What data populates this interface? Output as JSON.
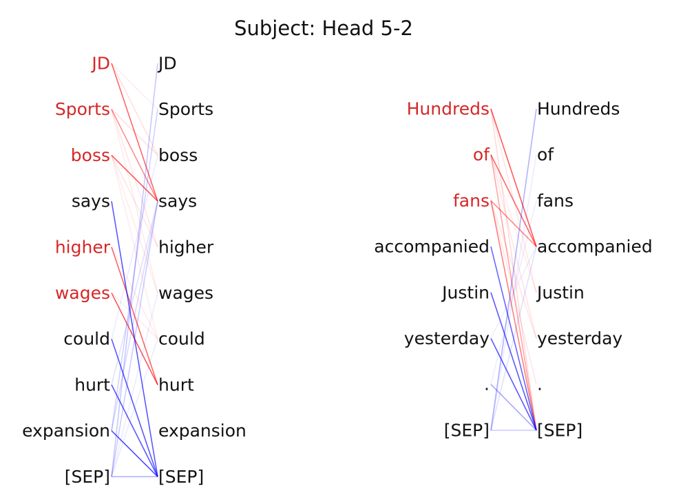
{
  "title": "Subject: Head 5-2",
  "colors": {
    "subject_token": "#d62728",
    "normal_token": "#111111",
    "red_edge": "#ff0000",
    "blue_edge": "#0000ff"
  },
  "panels": [
    {
      "tokens": [
        "JD",
        "Sports",
        "boss",
        "says",
        "higher",
        "wages",
        "could",
        "hurt",
        "expansion",
        "[SEP]"
      ],
      "subject_tokens": [
        0,
        1,
        2,
        4,
        5
      ],
      "edges": [
        {
          "from": 0,
          "to": 3,
          "color": "red",
          "weight": 0.6
        },
        {
          "from": 1,
          "to": 3,
          "color": "red",
          "weight": 0.45
        },
        {
          "from": 2,
          "to": 3,
          "color": "red",
          "weight": 0.65
        },
        {
          "from": 4,
          "to": 7,
          "color": "red",
          "weight": 0.6
        },
        {
          "from": 5,
          "to": 7,
          "color": "red",
          "weight": 0.65
        },
        {
          "from": 0,
          "to": 2,
          "color": "red",
          "weight": 0.12
        },
        {
          "from": 1,
          "to": 2,
          "color": "red",
          "weight": 0.12
        },
        {
          "from": 1,
          "to": 4,
          "color": "red",
          "weight": 0.1
        },
        {
          "from": 1,
          "to": 5,
          "color": "red",
          "weight": 0.08
        },
        {
          "from": 2,
          "to": 4,
          "color": "red",
          "weight": 0.1
        },
        {
          "from": 2,
          "to": 5,
          "color": "red",
          "weight": 0.08
        },
        {
          "from": 2,
          "to": 6,
          "color": "red",
          "weight": 0.08
        },
        {
          "from": 4,
          "to": 6,
          "color": "red",
          "weight": 0.08
        },
        {
          "from": 5,
          "to": 6,
          "color": "red",
          "weight": 0.08
        },
        {
          "from": 0,
          "to": 1,
          "color": "red",
          "weight": 0.07
        },
        {
          "from": 3,
          "to": 9,
          "color": "blue",
          "weight": 0.65
        },
        {
          "from": 6,
          "to": 9,
          "color": "blue",
          "weight": 0.65
        },
        {
          "from": 7,
          "to": 9,
          "color": "blue",
          "weight": 0.65
        },
        {
          "from": 8,
          "to": 9,
          "color": "blue",
          "weight": 0.7
        },
        {
          "from": 9,
          "to": 9,
          "color": "blue",
          "weight": 0.3
        },
        {
          "from": 9,
          "to": 0,
          "color": "blue",
          "weight": 0.22
        },
        {
          "from": 8,
          "to": 1,
          "color": "blue",
          "weight": 0.18
        },
        {
          "from": 9,
          "to": 3,
          "color": "blue",
          "weight": 0.2
        },
        {
          "from": 8,
          "to": 3,
          "color": "blue",
          "weight": 0.15
        },
        {
          "from": 7,
          "to": 3,
          "color": "blue",
          "weight": 0.12
        },
        {
          "from": 6,
          "to": 2,
          "color": "blue",
          "weight": 0.08
        },
        {
          "from": 9,
          "to": 5,
          "color": "blue",
          "weight": 0.08
        },
        {
          "from": 9,
          "to": 6,
          "color": "blue",
          "weight": 0.08
        }
      ]
    },
    {
      "tokens": [
        "Hundreds",
        "of",
        "fans",
        "accompanied",
        "Justin",
        "yesterday",
        ".",
        "[SEP]"
      ],
      "subject_tokens": [
        0,
        1,
        2
      ],
      "edges": [
        {
          "from": 0,
          "to": 3,
          "color": "red",
          "weight": 0.65
        },
        {
          "from": 1,
          "to": 3,
          "color": "red",
          "weight": 0.6
        },
        {
          "from": 2,
          "to": 3,
          "color": "red",
          "weight": 0.45
        },
        {
          "from": 2,
          "to": 7,
          "color": "red",
          "weight": 0.5
        },
        {
          "from": 1,
          "to": 7,
          "color": "red",
          "weight": 0.35
        },
        {
          "from": 0,
          "to": 7,
          "color": "red",
          "weight": 0.15
        },
        {
          "from": 0,
          "to": 4,
          "color": "red",
          "weight": 0.1
        },
        {
          "from": 1,
          "to": 5,
          "color": "red",
          "weight": 0.1
        },
        {
          "from": 2,
          "to": 5,
          "color": "red",
          "weight": 0.1
        },
        {
          "from": 2,
          "to": 6,
          "color": "red",
          "weight": 0.1
        },
        {
          "from": 1,
          "to": 4,
          "color": "red",
          "weight": 0.08
        },
        {
          "from": 3,
          "to": 7,
          "color": "blue",
          "weight": 0.6
        },
        {
          "from": 4,
          "to": 7,
          "color": "blue",
          "weight": 0.65
        },
        {
          "from": 5,
          "to": 7,
          "color": "blue",
          "weight": 0.65
        },
        {
          "from": 6,
          "to": 7,
          "color": "blue",
          "weight": 0.35
        },
        {
          "from": 7,
          "to": 0,
          "color": "blue",
          "weight": 0.3
        },
        {
          "from": 7,
          "to": 7,
          "color": "blue",
          "weight": 0.2
        },
        {
          "from": 7,
          "to": 3,
          "color": "blue",
          "weight": 0.12
        },
        {
          "from": 6,
          "to": 2,
          "color": "blue",
          "weight": 0.07
        },
        {
          "from": 7,
          "to": 1,
          "color": "blue",
          "weight": 0.08
        },
        {
          "from": 5,
          "to": 3,
          "color": "blue",
          "weight": 0.07
        }
      ]
    }
  ]
}
